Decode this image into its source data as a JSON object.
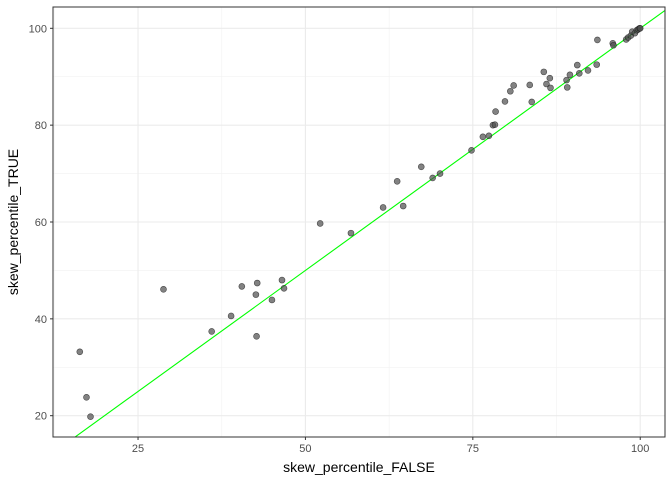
{
  "chart_data": {
    "type": "scatter",
    "xlabel": "skew_percentile_FALSE",
    "ylabel": "skew_percentile_TRUE",
    "xlim": [
      12.3,
      103.7
    ],
    "ylim": [
      15.6,
      104.4
    ],
    "x_ticks": [
      25,
      50,
      75,
      100
    ],
    "y_ticks": [
      20,
      40,
      60,
      80,
      100
    ],
    "x_tick_labels": [
      "25",
      "50",
      "75",
      "100"
    ],
    "y_tick_labels": [
      "20",
      "40",
      "60",
      "80",
      "100"
    ],
    "grid": true,
    "theme": "bw",
    "reference_line": {
      "slope": 1,
      "intercept": 0,
      "color": "#00ff00"
    },
    "point_color": "#4d4d4d",
    "points": [
      {
        "x": 16.3,
        "y": 33.2
      },
      {
        "x": 17.3,
        "y": 23.8
      },
      {
        "x": 17.9,
        "y": 19.8
      },
      {
        "x": 28.8,
        "y": 46.1
      },
      {
        "x": 36.0,
        "y": 37.4
      },
      {
        "x": 38.9,
        "y": 40.6
      },
      {
        "x": 40.5,
        "y": 46.7
      },
      {
        "x": 42.6,
        "y": 45.0
      },
      {
        "x": 42.8,
        "y": 47.4
      },
      {
        "x": 42.7,
        "y": 36.4
      },
      {
        "x": 45.0,
        "y": 43.9
      },
      {
        "x": 46.5,
        "y": 48.0
      },
      {
        "x": 46.8,
        "y": 46.3
      },
      {
        "x": 52.2,
        "y": 59.7
      },
      {
        "x": 56.8,
        "y": 57.7
      },
      {
        "x": 61.6,
        "y": 63.0
      },
      {
        "x": 63.7,
        "y": 68.4
      },
      {
        "x": 64.6,
        "y": 63.3
      },
      {
        "x": 67.3,
        "y": 71.4
      },
      {
        "x": 69.0,
        "y": 69.1
      },
      {
        "x": 70.1,
        "y": 70.0
      },
      {
        "x": 74.8,
        "y": 74.8
      },
      {
        "x": 76.5,
        "y": 77.6
      },
      {
        "x": 77.4,
        "y": 77.8
      },
      {
        "x": 78.0,
        "y": 80.0
      },
      {
        "x": 78.3,
        "y": 80.1
      },
      {
        "x": 78.4,
        "y": 82.8
      },
      {
        "x": 79.8,
        "y": 84.9
      },
      {
        "x": 80.6,
        "y": 87.0
      },
      {
        "x": 81.1,
        "y": 88.2
      },
      {
        "x": 83.5,
        "y": 88.3
      },
      {
        "x": 83.8,
        "y": 84.8
      },
      {
        "x": 85.6,
        "y": 91.0
      },
      {
        "x": 86.0,
        "y": 88.5
      },
      {
        "x": 86.6,
        "y": 87.7
      },
      {
        "x": 86.5,
        "y": 89.7
      },
      {
        "x": 89.0,
        "y": 89.3
      },
      {
        "x": 89.5,
        "y": 90.4
      },
      {
        "x": 89.1,
        "y": 87.8
      },
      {
        "x": 90.6,
        "y": 92.4
      },
      {
        "x": 90.9,
        "y": 90.7
      },
      {
        "x": 92.2,
        "y": 91.3
      },
      {
        "x": 93.5,
        "y": 92.5
      },
      {
        "x": 93.6,
        "y": 97.6
      },
      {
        "x": 95.9,
        "y": 96.9
      },
      {
        "x": 96.0,
        "y": 96.5
      },
      {
        "x": 97.9,
        "y": 97.7
      },
      {
        "x": 98.2,
        "y": 98.1
      },
      {
        "x": 98.6,
        "y": 98.5
      },
      {
        "x": 98.8,
        "y": 99.3
      },
      {
        "x": 99.2,
        "y": 99.0
      },
      {
        "x": 99.5,
        "y": 99.6
      },
      {
        "x": 99.7,
        "y": 99.8
      },
      {
        "x": 99.9,
        "y": 100.0
      },
      {
        "x": 100.0,
        "y": 100.0
      }
    ]
  }
}
